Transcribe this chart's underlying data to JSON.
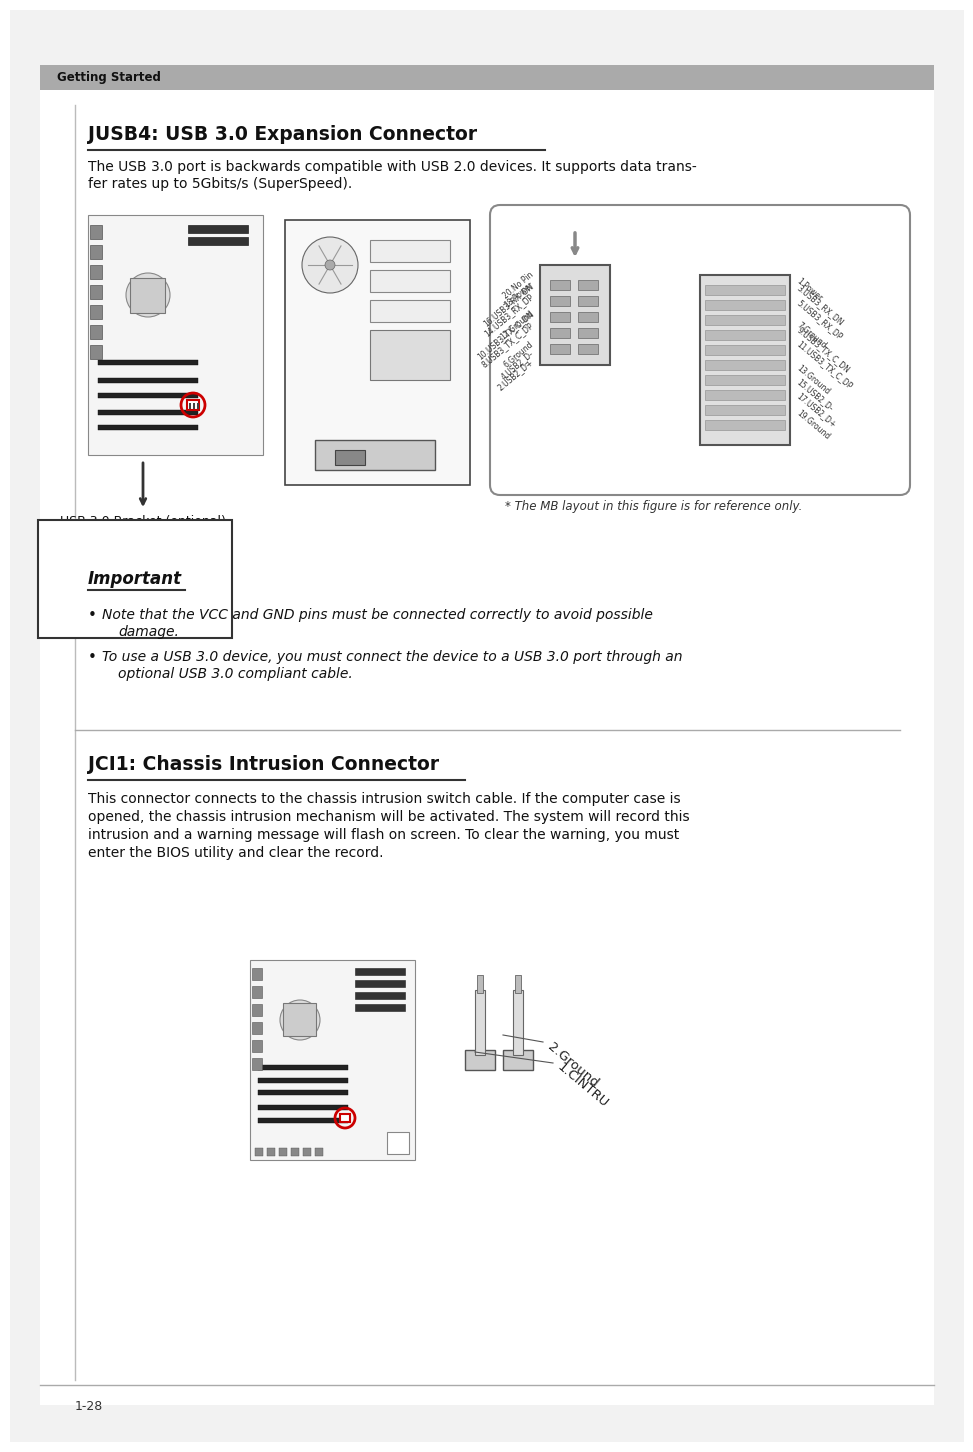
{
  "bg_color": "#ffffff",
  "header_text": "Getting Started",
  "footer_text": "1-28",
  "section1_title": "JUSB4: USB 3.0 Expansion Connector",
  "section1_body_line1": "The USB 3.0 port is backwards compatible with USB 2.0 devices. It supports data trans-",
  "section1_body_line2": "fer rates up to 5Gbits/s (SuperSpeed).",
  "important_title": "Important",
  "bullet1_line1": "Note that the VCC and GND pins must be connected correctly to avoid possible",
  "bullet1_line2": "damage.",
  "bullet2_line1": "To use a USB 3.0 device, you must connect the device to a USB 3.0 port through an",
  "bullet2_line2": "optional USB 3.0 compliant cable.",
  "section2_title": "JCI1: Chassis Intrusion Connector",
  "section2_body_line1": "This connector connects to the chassis intrusion switch cable. If the computer case is",
  "section2_body_line2": "opened, the chassis intrusion mechanism will be activated. The system will record this",
  "section2_body_line3": "intrusion and a warning message will flash on screen. To clear the warning, you must",
  "section2_body_line4": "enter the BIOS utility and clear the record.",
  "usb_bracket_label": "USB 3.0 Bracket (optional)",
  "mb_ref_note": "* The MB layout in this figure is for reference only.",
  "gnd_label": "2.Ground",
  "cintru_label": "1.CINTRU",
  "gray_bar_color": "#aaaaaa",
  "white_bg": "#ffffff",
  "light_gray": "#e8e8e8",
  "mid_gray": "#cccccc",
  "dark_gray": "#555555",
  "black": "#1a1a1a",
  "red": "#cc0000"
}
